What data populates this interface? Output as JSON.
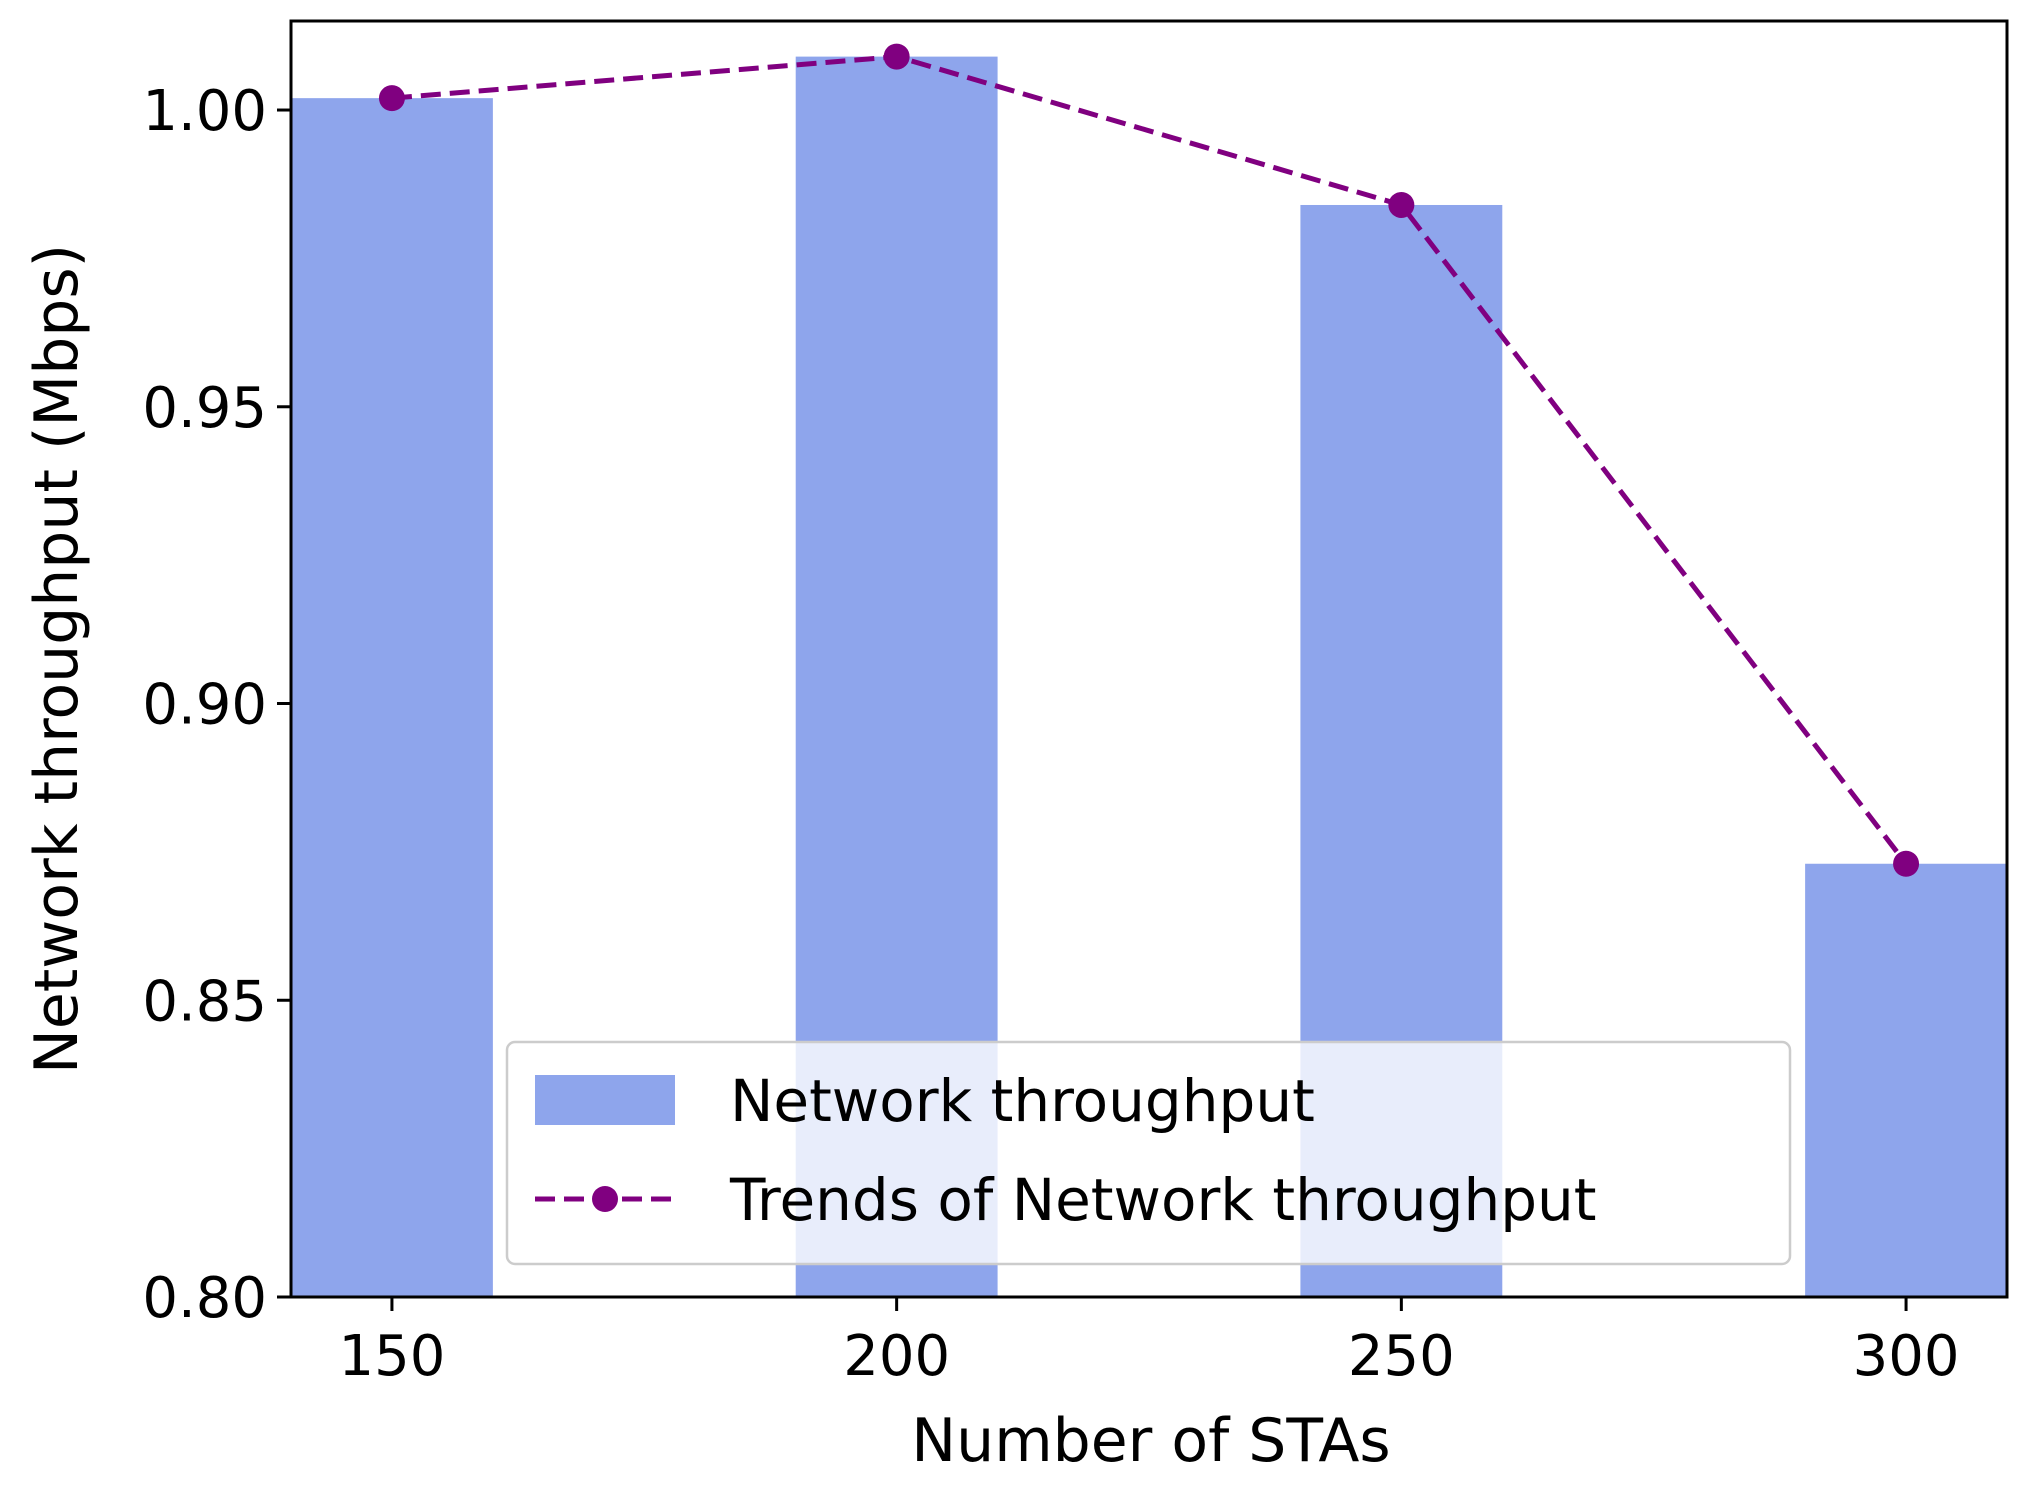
{
  "chart_data": {
    "type": "bar",
    "categories": [
      "150",
      "200",
      "250",
      "300"
    ],
    "x": [
      150,
      200,
      250,
      300
    ],
    "series": [
      {
        "name": "Network throughput",
        "kind": "bar",
        "values": [
          1.002,
          1.009,
          0.984,
          0.873
        ]
      },
      {
        "name": "Trends of Network throughput",
        "kind": "line",
        "style": "dashed",
        "marker": "circle",
        "values": [
          1.002,
          1.009,
          0.984,
          0.873
        ]
      }
    ],
    "xlabel": "Number of STAs",
    "ylabel": "Network throughput (Mbps)",
    "ylim": [
      0.8,
      1.015
    ],
    "xlim": [
      140,
      310
    ],
    "yticks": [
      "0.80",
      "0.85",
      "0.90",
      "0.95",
      "1.00"
    ],
    "ytick_values": [
      0.8,
      0.85,
      0.9,
      0.95,
      1.0
    ],
    "xticks": [
      "150",
      "200",
      "250",
      "300"
    ],
    "bar_width": 20,
    "grid": false,
    "legend_position": "lower-center",
    "colors": {
      "bar": "#8ea5ec",
      "line": "#800080"
    }
  }
}
